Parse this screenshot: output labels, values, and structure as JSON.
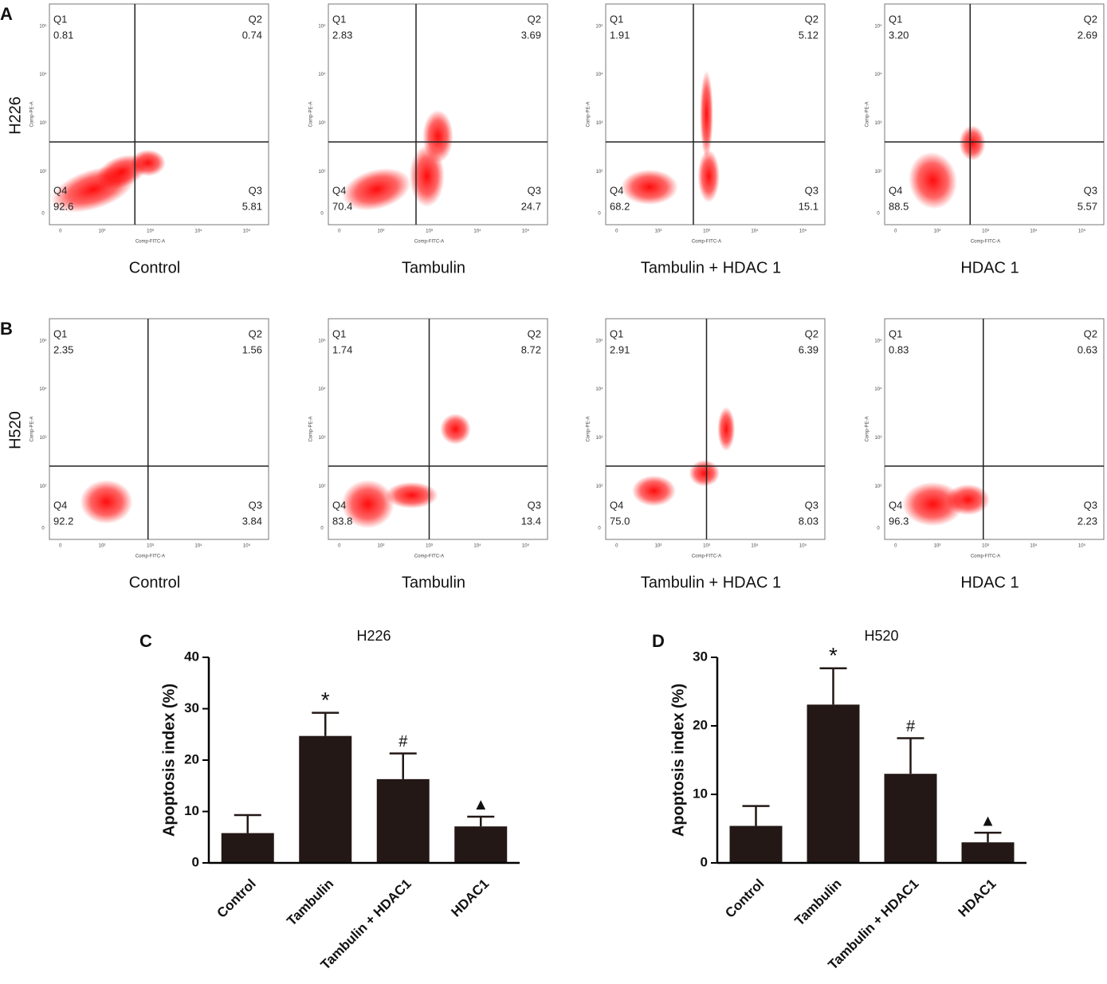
{
  "flow": {
    "x_label": "Comp-FITC-A",
    "y_label": "Comp-PE-A",
    "xticks": [
      "0",
      "10²",
      "10³",
      "10⁴",
      "10⁵"
    ],
    "yticks": [
      "0",
      "10²",
      "10³",
      "10⁴",
      "10⁵"
    ],
    "rows": [
      {
        "panel": "A",
        "label": "H226",
        "plots": [
          {
            "title": "Control",
            "quadrants": [
              {
                "name": "Q1",
                "value": "0.81"
              },
              {
                "name": "Q2",
                "value": "0.74"
              },
              {
                "name": "Q3",
                "value": "5.81"
              },
              {
                "name": "Q4",
                "value": "92.6"
              }
            ]
          },
          {
            "title": "Tambulin",
            "quadrants": [
              {
                "name": "Q1",
                "value": "2.83"
              },
              {
                "name": "Q2",
                "value": "3.69"
              },
              {
                "name": "Q3",
                "value": "24.7"
              },
              {
                "name": "Q4",
                "value": "70.4"
              }
            ]
          },
          {
            "title": "Tambulin + HDAC 1",
            "quadrants": [
              {
                "name": "Q1",
                "value": "1.91"
              },
              {
                "name": "Q2",
                "value": "5.12"
              },
              {
                "name": "Q3",
                "value": "15.1"
              },
              {
                "name": "Q4",
                "value": "68.2"
              }
            ]
          },
          {
            "title": "HDAC 1",
            "quadrants": [
              {
                "name": "Q1",
                "value": "3.20"
              },
              {
                "name": "Q2",
                "value": "2.69"
              },
              {
                "name": "Q3",
                "value": "5.57"
              },
              {
                "name": "Q4",
                "value": "88.5"
              }
            ]
          }
        ]
      },
      {
        "panel": "B",
        "label": "H520",
        "plots": [
          {
            "title": "Control",
            "quadrants": [
              {
                "name": "Q1",
                "value": "2.35"
              },
              {
                "name": "Q2",
                "value": "1.56"
              },
              {
                "name": "Q3",
                "value": "3.84"
              },
              {
                "name": "Q4",
                "value": "92.2"
              }
            ]
          },
          {
            "title": "Tambulin",
            "quadrants": [
              {
                "name": "Q1",
                "value": "1.74"
              },
              {
                "name": "Q2",
                "value": "8.72"
              },
              {
                "name": "Q3",
                "value": "13.4"
              },
              {
                "name": "Q4",
                "value": "83.8"
              }
            ]
          },
          {
            "title": "Tambulin + HDAC 1",
            "quadrants": [
              {
                "name": "Q1",
                "value": "2.91"
              },
              {
                "name": "Q2",
                "value": "6.39"
              },
              {
                "name": "Q3",
                "value": "8.03"
              },
              {
                "name": "Q4",
                "value": "75.0"
              }
            ]
          },
          {
            "title": "HDAC 1",
            "quadrants": [
              {
                "name": "Q1",
                "value": "0.83"
              },
              {
                "name": "Q2",
                "value": "0.63"
              },
              {
                "name": "Q3",
                "value": "2.23"
              },
              {
                "name": "Q4",
                "value": "96.3"
              }
            ]
          }
        ]
      }
    ]
  },
  "chart_data": [
    {
      "type": "bar",
      "panel": "C",
      "title": "H226",
      "y_label": "Apoptosis index (%)",
      "categories": [
        "Control",
        "Tambulin",
        "Tambulin + HDAC1",
        "HDAC1"
      ],
      "values": [
        5.8,
        24.7,
        16.3,
        7.1
      ],
      "errors": [
        3.5,
        4.5,
        5.0,
        1.9
      ],
      "annotations": [
        null,
        "*",
        "#",
        "▲"
      ],
      "color": "#231816",
      "ylim": [
        0,
        40
      ],
      "yticks": [
        0,
        10,
        20,
        30,
        40
      ]
    },
    {
      "type": "bar",
      "panel": "D",
      "title": "H520",
      "y_label": "Apoptosis index (%)",
      "categories": [
        "Control",
        "Tambulin",
        "Tambulin + HDAC1",
        "HDAC1"
      ],
      "values": [
        5.4,
        23.1,
        13.0,
        3.0
      ],
      "errors": [
        2.9,
        5.3,
        5.2,
        1.4
      ],
      "annotations": [
        null,
        "*",
        "#",
        "▲"
      ],
      "color": "#231816",
      "ylim": [
        0,
        30
      ],
      "yticks": [
        0,
        10,
        20,
        30
      ]
    }
  ]
}
